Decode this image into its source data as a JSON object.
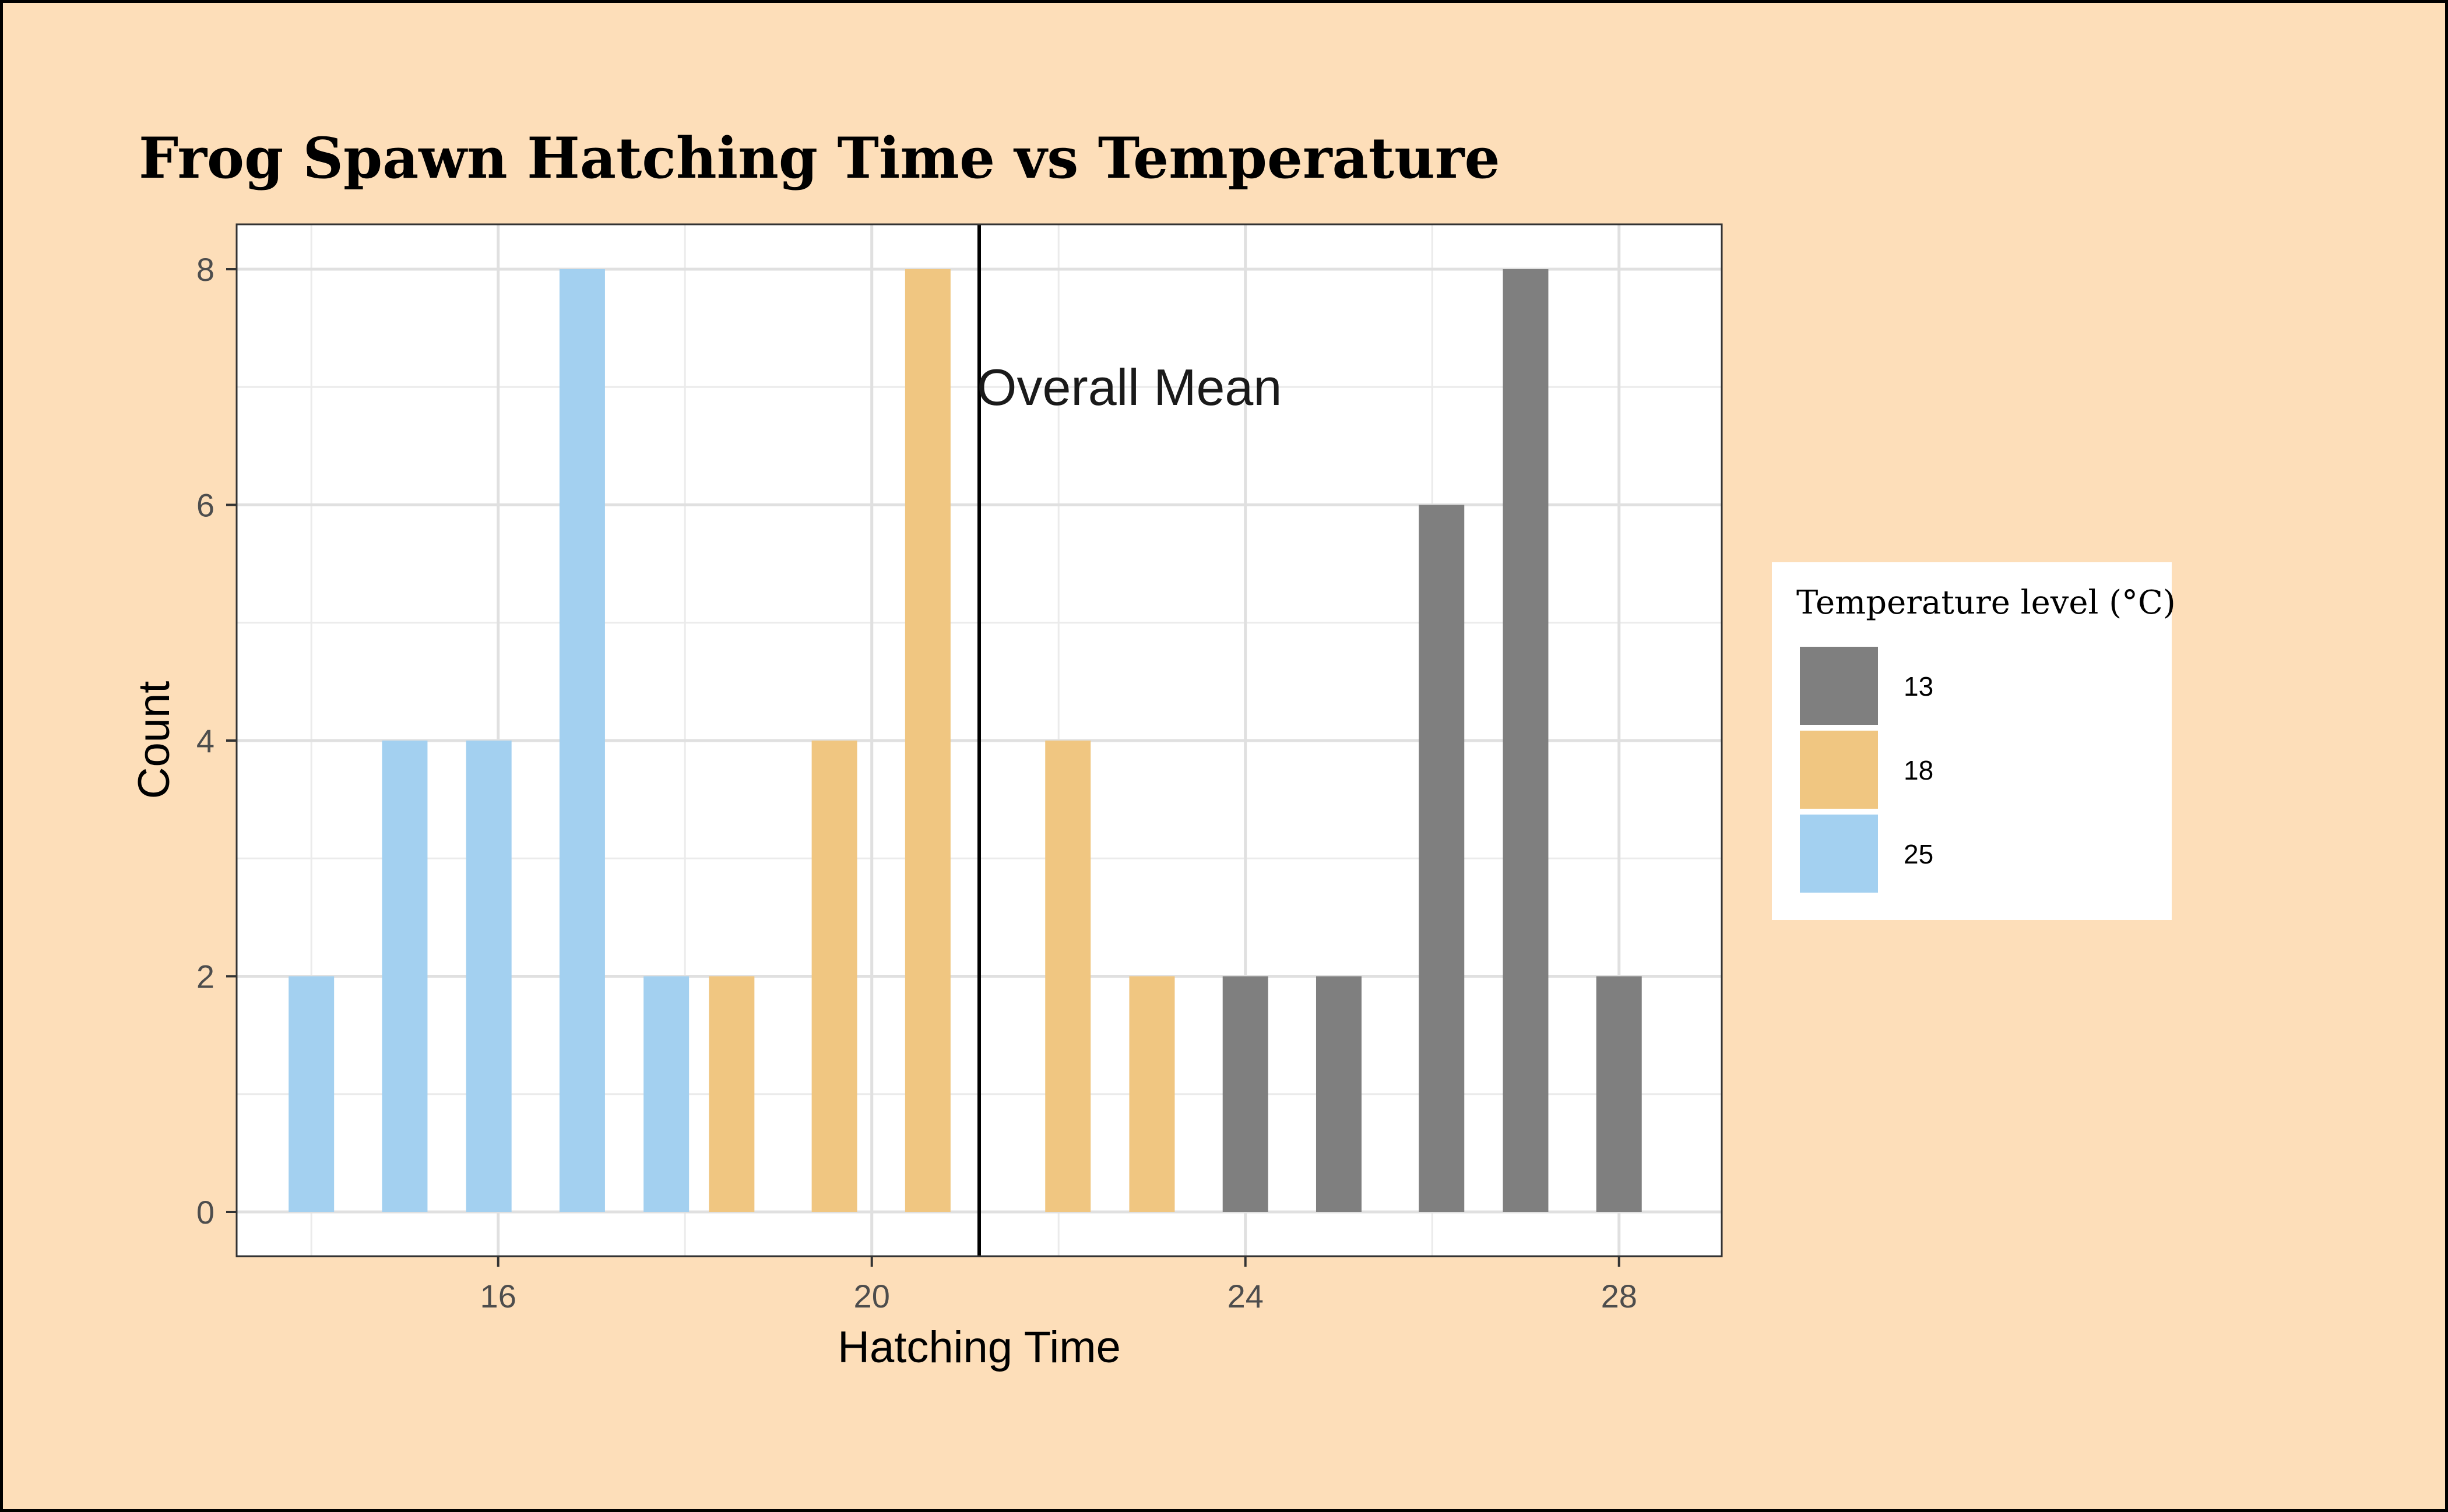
{
  "chart_data": {
    "type": "bar",
    "title": "Frog Spawn Hatching Time vs Temperature",
    "xlabel": "Hatching Time",
    "ylabel": "Count",
    "xlim": [
      13.2,
      29.1
    ],
    "ylim": [
      0,
      8.4
    ],
    "xticks": [
      16,
      20,
      24,
      28
    ],
    "yticks": [
      0,
      2,
      4,
      6,
      8
    ],
    "grid": true,
    "legend_position": "right",
    "legend_title": "Temperature level (°C)",
    "series": [
      {
        "name": "13",
        "color": "#7F7F7F",
        "points": [
          {
            "x": 24.0,
            "y": 2
          },
          {
            "x": 25.0,
            "y": 2
          },
          {
            "x": 26.1,
            "y": 6
          },
          {
            "x": 27.0,
            "y": 8
          },
          {
            "x": 28.0,
            "y": 2
          }
        ]
      },
      {
        "name": "18",
        "color": "#F0C681",
        "points": [
          {
            "x": 18.5,
            "y": 2
          },
          {
            "x": 19.6,
            "y": 4
          },
          {
            "x": 20.6,
            "y": 8
          },
          {
            "x": 22.1,
            "y": 4
          },
          {
            "x": 23.0,
            "y": 2
          }
        ]
      },
      {
        "name": "25",
        "color": "#A3D0F0",
        "points": [
          {
            "x": 14.0,
            "y": 2
          },
          {
            "x": 15.0,
            "y": 4
          },
          {
            "x": 15.9,
            "y": 4
          },
          {
            "x": 16.9,
            "y": 8
          },
          {
            "x": 17.8,
            "y": 2
          }
        ]
      }
    ],
    "annotations": [
      {
        "type": "vline",
        "x": 21.15,
        "label": "Overall Mean"
      }
    ]
  }
}
